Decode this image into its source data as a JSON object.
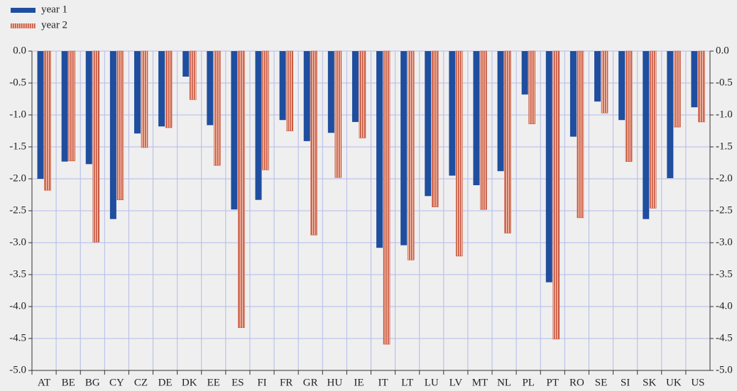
{
  "chart_data": {
    "type": "bar",
    "categories": [
      "AT",
      "BE",
      "BG",
      "CY",
      "CZ",
      "DE",
      "DK",
      "EE",
      "ES",
      "FI",
      "FR",
      "GR",
      "HU",
      "IE",
      "IT",
      "LT",
      "LU",
      "LV",
      "MT",
      "NL",
      "PL",
      "PT",
      "RO",
      "SE",
      "SI",
      "SK",
      "UK",
      "US"
    ],
    "series": [
      {
        "name": "year 1",
        "color": "#1f4e9f",
        "values": [
          -2.0,
          -1.73,
          -1.77,
          -2.63,
          -1.29,
          -1.18,
          -0.4,
          -1.16,
          -2.48,
          -2.33,
          -1.08,
          -1.41,
          -1.28,
          -1.11,
          -3.08,
          -3.04,
          -2.27,
          -1.95,
          -2.1,
          -1.88,
          -0.68,
          -3.62,
          -1.34,
          -0.79,
          -1.08,
          -2.63,
          -1.99,
          -0.88
        ]
      },
      {
        "name": "year 2",
        "color": "#c8563e",
        "values": [
          -2.18,
          -1.72,
          -2.99,
          -2.33,
          -1.51,
          -1.2,
          -0.76,
          -1.79,
          -4.33,
          -1.86,
          -1.25,
          -2.88,
          -1.98,
          -1.36,
          -4.59,
          -3.27,
          -2.44,
          -3.21,
          -2.48,
          -2.85,
          -1.14,
          -4.51,
          -2.61,
          -0.97,
          -1.73,
          -2.46,
          -1.19,
          -1.11
        ]
      }
    ],
    "ylim": [
      -5,
      0
    ],
    "yticks": [
      {
        "value": 0,
        "label": "0.0"
      },
      -0.5,
      {
        "value": -1,
        "label": "-1.0"
      },
      -1.5,
      {
        "value": -2,
        "label": "-2.0"
      },
      -2.5,
      {
        "value": -3,
        "label": "-3.0"
      },
      -3.5,
      {
        "value": -4,
        "label": "-4.0"
      },
      -4.5,
      {
        "value": -5,
        "label": "-5.0"
      }
    ],
    "grid": true,
    "legend": "top-left"
  }
}
